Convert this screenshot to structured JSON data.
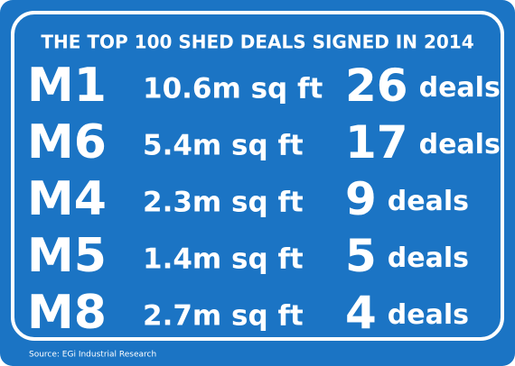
{
  "header": {
    "title": "THE TOP 100 SHED DEALS SIGNED IN 2014"
  },
  "table": {
    "rows": [
      {
        "motorway": "M1",
        "space": "10.6m sq ft",
        "deals": 26,
        "unit": "deals"
      },
      {
        "motorway": "M6",
        "space": "5.4m sq ft",
        "deals": 17,
        "unit": "deals"
      },
      {
        "motorway": "M4",
        "space": "2.3m sq ft",
        "deals": 9,
        "unit": "deals"
      },
      {
        "motorway": "M5",
        "space": "1.4m sq ft",
        "deals": 5,
        "unit": "deals"
      },
      {
        "motorway": "M8",
        "space": "2.7m sq ft",
        "deals": 4,
        "unit": "deals"
      }
    ]
  },
  "footer": {
    "source": "Source: EGi Industrial Research"
  }
}
